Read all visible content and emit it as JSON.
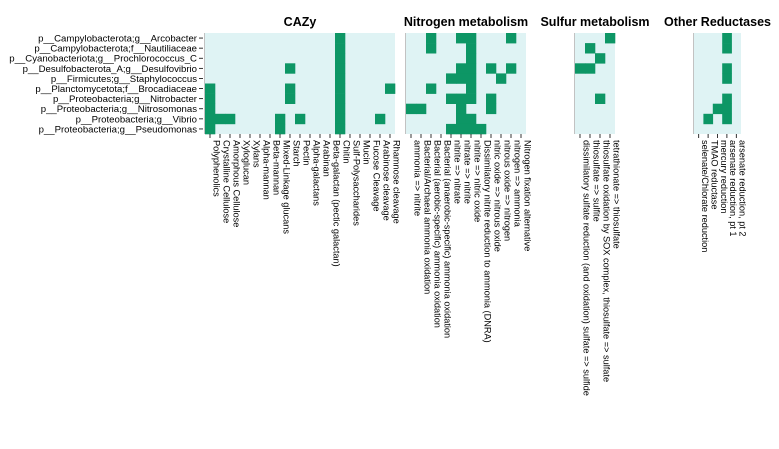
{
  "colors": {
    "absent": "#dff3f4",
    "present": "#0d9665",
    "tick": "#000000"
  },
  "chart_data": {
    "type": "heatmap",
    "rows": [
      "p__Campylobacterota;g__Arcobacter",
      "p__Campylobacterota;f__Nautiliaceae",
      "p__Cyanobacteriota;g__Prochlorococcus_C",
      "p__Desulfobacterota_A;g__Desulfovibrio",
      "p__Firmicutes;g__Staphylococcus",
      "p__Planctomycetota;f__Brocadiaceae",
      "p__Proteobacteria;g__Nitrobacter",
      "p__Proteobacteria;g__Nitrosomonas",
      "p__Proteobacteria;g__Vibrio",
      "p__Proteobacteria;g__Pseudomonas"
    ],
    "panels": [
      {
        "title": "CAZy",
        "columns": [
          "Polyphenolics",
          "Crystalline Cellulose",
          "Amorphous Cellulose",
          "Xyloglucan",
          "Xylans",
          "Alpha-mannan",
          "Beta-mannan",
          "Mixed-Linkage glucans",
          "Starch",
          "Pectin",
          "Alpha-galactans",
          "Arabinan",
          "Beta-galactan (pectic galactan)",
          "Chitin",
          "Sulf-Polysaccharides",
          "Mucin",
          "Fucose Cleavage",
          "Arabinose cleavage",
          "Rhamnose cleavage"
        ],
        "matrix": [
          [
            0,
            0,
            0,
            0,
            0,
            0,
            0,
            0,
            0,
            0,
            0,
            0,
            0,
            1,
            0,
            0,
            0,
            0,
            0
          ],
          [
            0,
            0,
            0,
            0,
            0,
            0,
            0,
            0,
            0,
            0,
            0,
            0,
            0,
            1,
            0,
            0,
            0,
            0,
            0
          ],
          [
            0,
            0,
            0,
            0,
            0,
            0,
            0,
            0,
            0,
            0,
            0,
            0,
            0,
            1,
            0,
            0,
            0,
            0,
            0
          ],
          [
            0,
            0,
            0,
            0,
            0,
            0,
            0,
            0,
            1,
            0,
            0,
            0,
            0,
            1,
            0,
            0,
            0,
            0,
            0
          ],
          [
            0,
            0,
            0,
            0,
            0,
            0,
            0,
            0,
            0,
            0,
            0,
            0,
            0,
            1,
            0,
            0,
            0,
            0,
            0
          ],
          [
            1,
            0,
            0,
            0,
            0,
            0,
            0,
            0,
            1,
            0,
            0,
            0,
            0,
            1,
            0,
            0,
            0,
            0,
            1
          ],
          [
            1,
            0,
            0,
            0,
            0,
            0,
            0,
            0,
            1,
            0,
            0,
            0,
            0,
            1,
            0,
            0,
            0,
            0,
            0
          ],
          [
            1,
            0,
            0,
            0,
            0,
            0,
            0,
            0,
            0,
            0,
            0,
            0,
            0,
            1,
            0,
            0,
            0,
            0,
            0
          ],
          [
            1,
            1,
            1,
            0,
            0,
            0,
            0,
            1,
            0,
            1,
            0,
            0,
            0,
            1,
            0,
            0,
            0,
            1,
            0
          ],
          [
            1,
            0,
            0,
            0,
            0,
            0,
            0,
            1,
            0,
            0,
            0,
            0,
            0,
            1,
            0,
            0,
            0,
            0,
            0
          ]
        ]
      },
      {
        "title": "Nitrogen metabolism",
        "columns": [
          "ammonia => nitrite",
          "Bacterial/Archaeal ammonia oxidation",
          "Bacterial (aerobic-specific) ammonia oxidation",
          "Bacterial (anaerobic-specific) ammonia oxidation",
          "nitrite => nitrate",
          "nitrate => nitrite",
          "nitrite => nitric oxide",
          "Dissimilatory nitrite reduction to ammonia (DNRA)",
          "nitric oxide => nitrous oxide",
          "nitrous oxide => nitrogen",
          "nitrogen => ammonia",
          "Nitrogen fixation alternative"
        ],
        "matrix": [
          [
            0,
            0,
            1,
            0,
            0,
            1,
            1,
            0,
            0,
            0,
            1,
            0
          ],
          [
            0,
            0,
            1,
            0,
            0,
            0,
            1,
            0,
            0,
            0,
            0,
            0
          ],
          [
            0,
            0,
            0,
            0,
            0,
            0,
            1,
            0,
            0,
            0,
            0,
            0
          ],
          [
            0,
            0,
            0,
            0,
            0,
            1,
            1,
            0,
            1,
            0,
            1,
            0
          ],
          [
            0,
            0,
            0,
            0,
            1,
            1,
            1,
            0,
            0,
            1,
            0,
            0
          ],
          [
            0,
            0,
            1,
            0,
            0,
            0,
            1,
            0,
            0,
            0,
            0,
            0
          ],
          [
            0,
            0,
            0,
            0,
            1,
            1,
            1,
            0,
            1,
            0,
            0,
            0
          ],
          [
            1,
            1,
            0,
            0,
            0,
            1,
            0,
            0,
            1,
            0,
            0,
            0
          ],
          [
            0,
            0,
            0,
            0,
            0,
            1,
            1,
            0,
            0,
            0,
            0,
            0
          ],
          [
            0,
            0,
            0,
            0,
            1,
            1,
            1,
            1,
            0,
            0,
            0,
            0
          ]
        ]
      },
      {
        "title": "Sulfur metabolism",
        "columns": [
          "dissimilatory sulfate reduction (and oxidation) sulfate => sulfide",
          "thiosulfate => sulfite",
          "thiosulfate oxidation by SOX complex, thiosulfate => sulfate",
          "tetrathionate => thiosulfate"
        ],
        "matrix": [
          [
            0,
            0,
            0,
            1
          ],
          [
            0,
            1,
            0,
            0
          ],
          [
            0,
            0,
            1,
            0
          ],
          [
            1,
            1,
            0,
            0
          ],
          [
            0,
            0,
            0,
            0
          ],
          [
            0,
            0,
            0,
            0
          ],
          [
            0,
            0,
            1,
            0
          ],
          [
            0,
            0,
            0,
            0
          ],
          [
            0,
            0,
            0,
            0
          ],
          [
            0,
            0,
            0,
            0
          ]
        ]
      },
      {
        "title": "Other Reductases",
        "columns": [
          "selenate/Chlorate reduction",
          "TMAO reductase",
          "mercury reduction",
          "arsenate reduction, pt 1",
          "arsenate reduction, pt 2"
        ],
        "matrix": [
          [
            0,
            0,
            0,
            1,
            0
          ],
          [
            0,
            0,
            0,
            1,
            0
          ],
          [
            0,
            0,
            0,
            0,
            0
          ],
          [
            0,
            0,
            0,
            1,
            0
          ],
          [
            0,
            0,
            0,
            1,
            0
          ],
          [
            0,
            0,
            0,
            0,
            0
          ],
          [
            0,
            0,
            0,
            1,
            0
          ],
          [
            0,
            0,
            1,
            1,
            0
          ],
          [
            0,
            1,
            0,
            1,
            0
          ],
          [
            0,
            0,
            0,
            0,
            0
          ]
        ]
      }
    ]
  }
}
